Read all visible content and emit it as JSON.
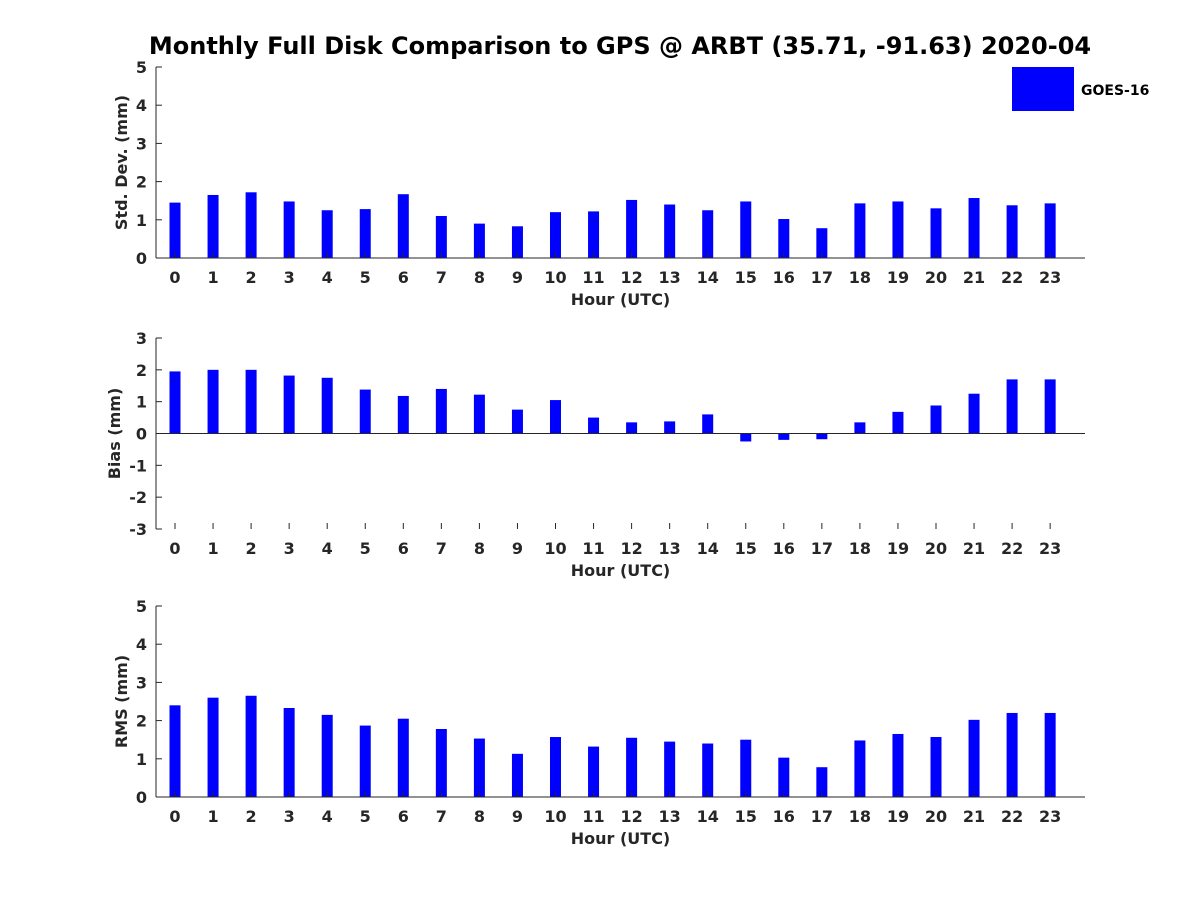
{
  "title": "Monthly Full Disk Comparison to GPS @ ARBT (35.71, -91.63) 2020-04",
  "legend": {
    "label": "GOES-16",
    "color": "#0000ff"
  },
  "chart_data": [
    {
      "type": "bar",
      "title": "",
      "xlabel": "Hour (UTC)",
      "ylabel": "Std. Dev. (mm)",
      "categories": [
        "0",
        "1",
        "2",
        "3",
        "4",
        "5",
        "6",
        "7",
        "8",
        "9",
        "10",
        "11",
        "12",
        "13",
        "14",
        "15",
        "16",
        "17",
        "18",
        "19",
        "20",
        "21",
        "22",
        "23"
      ],
      "series": [
        {
          "name": "GOES-16",
          "color": "#0000ff",
          "values": [
            1.45,
            1.65,
            1.72,
            1.48,
            1.25,
            1.28,
            1.67,
            1.1,
            0.9,
            0.83,
            1.2,
            1.22,
            1.52,
            1.4,
            1.25,
            1.48,
            1.02,
            0.78,
            1.43,
            1.48,
            1.3,
            1.57,
            1.38,
            1.43
          ]
        }
      ],
      "ylim": [
        0,
        5
      ],
      "yticks": [
        "0",
        "1",
        "2",
        "3",
        "4",
        "5"
      ]
    },
    {
      "type": "bar",
      "title": "",
      "xlabel": "Hour (UTC)",
      "ylabel": "Bias (mm)",
      "categories": [
        "0",
        "1",
        "2",
        "3",
        "4",
        "5",
        "6",
        "7",
        "8",
        "9",
        "10",
        "11",
        "12",
        "13",
        "14",
        "15",
        "16",
        "17",
        "18",
        "19",
        "20",
        "21",
        "22",
        "23"
      ],
      "series": [
        {
          "name": "GOES-16",
          "color": "#0000ff",
          "values": [
            1.95,
            2.0,
            2.0,
            1.82,
            1.75,
            1.38,
            1.18,
            1.4,
            1.22,
            0.75,
            1.05,
            0.5,
            0.35,
            0.38,
            0.6,
            -0.25,
            -0.2,
            -0.18,
            0.35,
            0.68,
            0.88,
            1.25,
            1.7,
            1.7
          ]
        }
      ],
      "ylim": [
        -3,
        3
      ],
      "yticks": [
        "-3",
        "-2",
        "-1",
        "0",
        "1",
        "2",
        "3"
      ]
    },
    {
      "type": "bar",
      "title": "",
      "xlabel": "Hour (UTC)",
      "ylabel": "RMS (mm)",
      "categories": [
        "0",
        "1",
        "2",
        "3",
        "4",
        "5",
        "6",
        "7",
        "8",
        "9",
        "10",
        "11",
        "12",
        "13",
        "14",
        "15",
        "16",
        "17",
        "18",
        "19",
        "20",
        "21",
        "22",
        "23"
      ],
      "series": [
        {
          "name": "GOES-16",
          "color": "#0000ff",
          "values": [
            2.4,
            2.6,
            2.65,
            2.33,
            2.15,
            1.87,
            2.05,
            1.78,
            1.53,
            1.13,
            1.57,
            1.32,
            1.55,
            1.45,
            1.4,
            1.5,
            1.03,
            0.78,
            1.48,
            1.65,
            1.57,
            2.02,
            2.2,
            2.2
          ]
        }
      ],
      "ylim": [
        0,
        5
      ],
      "yticks": [
        "0",
        "1",
        "2",
        "3",
        "4",
        "5"
      ]
    }
  ]
}
